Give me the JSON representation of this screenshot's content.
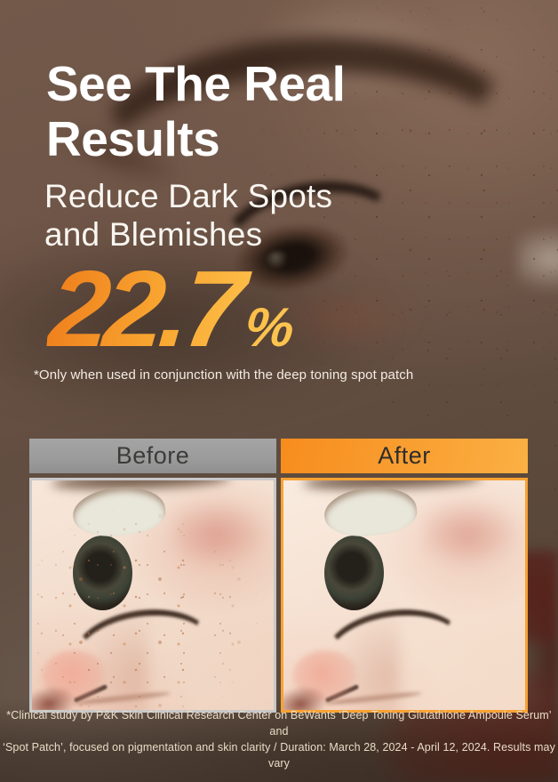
{
  "poster": {
    "heading": {
      "line1": "See The Real",
      "line2": "Results"
    },
    "subheading": {
      "line1": "Reduce Dark Spots",
      "line2": "and Blemishes"
    },
    "stat": {
      "value": "22.7",
      "unit": "%"
    },
    "stat_footnote": "*Only when used in conjunction with the deep toning spot patch",
    "comparison": {
      "before_label": "Before",
      "after_label": "After"
    },
    "disclaimer": {
      "line1": "*Clinical study by P&K Skin Clinical Research Center on BeWants ‘Deep Toning Glutathione Ampoule Serum’ and",
      "line2": "‘Spot Patch’, focused on pigmentation and skin clarity / Duration: March 28, 2024 - April 12, 2024. Results may vary"
    },
    "colors": {
      "before_bar": "#9C9C9C",
      "after_bar_start": "#F78C1E",
      "after_bar_end": "#FBB043",
      "stat_gradient_start": "#F0831F",
      "stat_gradient_mid": "#F9A832",
      "stat_gradient_end": "#FDC44F",
      "before_border": "#C8C8C8",
      "after_border": "#F8A233",
      "heading_text": "#FFFFFF"
    }
  }
}
